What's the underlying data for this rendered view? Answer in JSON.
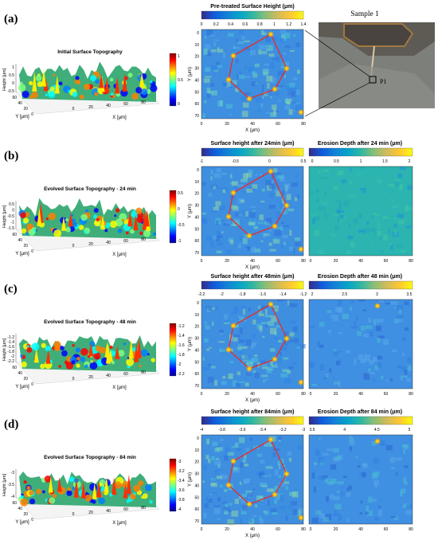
{
  "colors": {
    "jet": [
      "#00008f",
      "#0000ff",
      "#007fff",
      "#00ffff",
      "#7fff7f",
      "#ffff00",
      "#ff7f00",
      "#ff0000",
      "#7f0000"
    ],
    "parula": [
      "#352a87",
      "#0f5cdd",
      "#1481d6",
      "#06a4ca",
      "#2eb7a4",
      "#87bf77",
      "#d1bb59",
      "#fec832",
      "#f9fb0e"
    ],
    "outline": "#e03030",
    "map_bg": "#3e8fe0"
  },
  "photo": {
    "title": "Sample 1",
    "marker_label": "P1"
  },
  "rows": [
    {
      "label": "(a)",
      "surface3d": {
        "title": "Initial Surface Topography",
        "zlabel": "Height [μm]",
        "ylabel": "Y [μm]",
        "xlabel": "X [μm]",
        "z_ticks": [
          "1",
          "0.5",
          "0",
          "-0.5"
        ],
        "y_ticks": [
          "0",
          "20",
          "40",
          "60"
        ],
        "x_ticks": [
          "0",
          "20",
          "40",
          "60",
          "80"
        ],
        "colorbar_ticks": [
          "1",
          "0.5",
          "0"
        ]
      },
      "heightmap": {
        "title": "Pre-treated Surface Height (μm)",
        "colorbar_ticks": [
          "0",
          "0.2",
          "0.4",
          "0.6",
          "0.8",
          "1",
          "1.2",
          "1.4"
        ],
        "ylabel": "Y (μm)",
        "xlabel": "X (μm)",
        "y_ticks": [
          "0",
          "10",
          "20",
          "30",
          "40",
          "50",
          "60",
          "70"
        ],
        "x_ticks": [
          "0",
          "20",
          "40",
          "60",
          "80"
        ]
      }
    },
    {
      "label": "(b)",
      "surface3d": {
        "title": "Evolved Surface Topography - 24 min",
        "zlabel": "Height [μm]",
        "ylabel": "Y [μm]",
        "xlabel": "X [μm]",
        "z_ticks": [
          "0.5",
          "0",
          "-0.5",
          "-1",
          "-1.5"
        ],
        "y_ticks": [
          "0",
          "20",
          "40",
          "60"
        ],
        "x_ticks": [
          "0",
          "20",
          "40",
          "60",
          "80"
        ],
        "colorbar_ticks": [
          "0.5",
          "0",
          "-0.5",
          "-1"
        ]
      },
      "heightmap": {
        "title": "Surface height after 24min (μm)",
        "colorbar_ticks": [
          "-1",
          "-0.5",
          "0",
          "0.5"
        ],
        "ylabel": "Y (μm)",
        "xlabel": "X (μm)",
        "y_ticks": [
          "0",
          "10",
          "20",
          "30",
          "40",
          "50",
          "60",
          "70"
        ],
        "x_ticks": [
          "0",
          "20",
          "40",
          "60",
          "80"
        ]
      },
      "erosion": {
        "title": "Erosion Depth after 24 min (μm)",
        "colorbar_ticks": [
          "0",
          "0.5",
          "1",
          "1.5",
          "2"
        ],
        "x_ticks": [
          "0",
          "20",
          "40",
          "60",
          "80"
        ]
      }
    },
    {
      "label": "(c)",
      "surface3d": {
        "title": "Evolved Surface Topography - 48 min",
        "zlabel": "Height [μm]",
        "ylabel": "Y [μm]",
        "xlabel": "X [μm]",
        "z_ticks": [
          "-1.2",
          "-1.4",
          "-1.6",
          "-1.8",
          "-2",
          "-2.2"
        ],
        "y_ticks": [
          "0",
          "20",
          "40",
          "60"
        ],
        "x_ticks": [
          "0",
          "20",
          "40",
          "60",
          "80"
        ],
        "colorbar_ticks": [
          "-1.2",
          "-1.4",
          "-1.6",
          "-1.8",
          "-2",
          "-2.2"
        ]
      },
      "heightmap": {
        "title": "Surface height after 48min (μm)",
        "colorbar_ticks": [
          "-2.2",
          "-2",
          "-1.8",
          "-1.6",
          "-1.4",
          "-1.2"
        ],
        "ylabel": "Y (μm)",
        "xlabel": "X (μm)",
        "y_ticks": [
          "0",
          "10",
          "20",
          "30",
          "40",
          "50",
          "60",
          "70"
        ],
        "x_ticks": [
          "0",
          "20",
          "40",
          "60",
          "80"
        ]
      },
      "erosion": {
        "title": "Erosion Depth after 48 min (μm)",
        "colorbar_ticks": [
          "2",
          "2.5",
          "3",
          "3.5"
        ],
        "x_ticks": [
          "0",
          "20",
          "40",
          "60",
          "80"
        ]
      }
    },
    {
      "label": "(d)",
      "surface3d": {
        "title": "Evolved Surface Topography - 84 min",
        "zlabel": "Height [μm]",
        "ylabel": "Y [μm]",
        "xlabel": "X [μm]",
        "z_ticks": [
          "-3",
          "-3.5",
          "-4"
        ],
        "y_ticks": [
          "0",
          "20",
          "40",
          "60"
        ],
        "x_ticks": [
          "0",
          "20",
          "40",
          "60",
          "80"
        ],
        "colorbar_ticks": [
          "-3",
          "-3.2",
          "-3.4",
          "-3.6",
          "-3.8",
          "-4"
        ]
      },
      "heightmap": {
        "title": "Surface height after 84min (μm)",
        "colorbar_ticks": [
          "-4",
          "-3.8",
          "-3.6",
          "-3.4",
          "-3.2",
          "-3"
        ],
        "ylabel": "Y (μm)",
        "xlabel": "X (μm)",
        "y_ticks": [
          "0",
          "10",
          "20",
          "30",
          "40",
          "50",
          "60",
          "70"
        ],
        "x_ticks": [
          "0",
          "20",
          "40",
          "60",
          "80"
        ]
      },
      "erosion": {
        "title": "Erosion Depth after 84 min (μm)",
        "colorbar_ticks": [
          "3.5",
          "4",
          "4.5",
          "5"
        ],
        "x_ticks": [
          "0",
          "20",
          "40",
          "60",
          "80"
        ]
      }
    }
  ]
}
